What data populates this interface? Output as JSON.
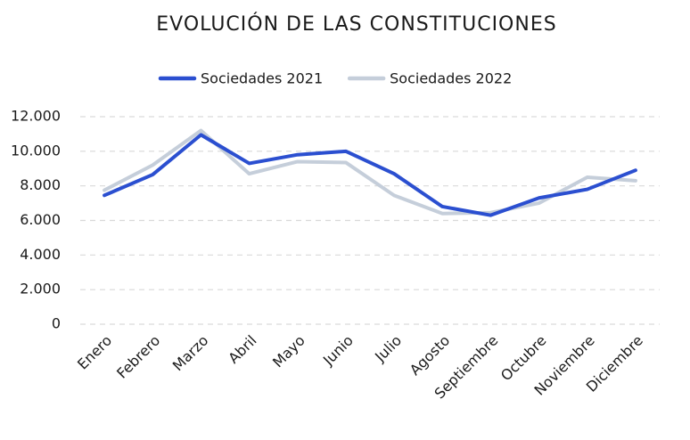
{
  "chart_data": {
    "type": "line",
    "title": "EVOLUCIÓN DE LAS CONSTITUCIONES",
    "categories": [
      "Enero",
      "Febrero",
      "Marzo",
      "Abril",
      "Mayo",
      "Junio",
      "Julio",
      "Agosto",
      "Septiembre",
      "Octubre",
      "Noviembre",
      "Diciembre"
    ],
    "series": [
      {
        "name": "Sociedades 2021",
        "color": "#2b4fd0",
        "values": [
          7450,
          8650,
          10950,
          9300,
          9800,
          10000,
          8700,
          6800,
          6300,
          7300,
          7800,
          8900
        ]
      },
      {
        "name": "Sociedades 2022",
        "color": "#c5ceda",
        "values": [
          7750,
          9200,
          11200,
          8700,
          9400,
          9350,
          7450,
          6400,
          6450,
          7000,
          8500,
          8300
        ]
      }
    ],
    "ylim": [
      0,
      12000
    ],
    "yticks": [
      0,
      {
        "value": 2000,
        "label": "2.000"
      },
      {
        "value": 4000,
        "label": "4.000"
      },
      {
        "value": 6000,
        "label": "6.000"
      },
      {
        "value": 8000,
        "label": "8.000"
      },
      {
        "value": 10000,
        "label": "10.000"
      },
      {
        "value": 12000,
        "label": "12.000"
      }
    ],
    "grid": true,
    "legend": "top"
  }
}
